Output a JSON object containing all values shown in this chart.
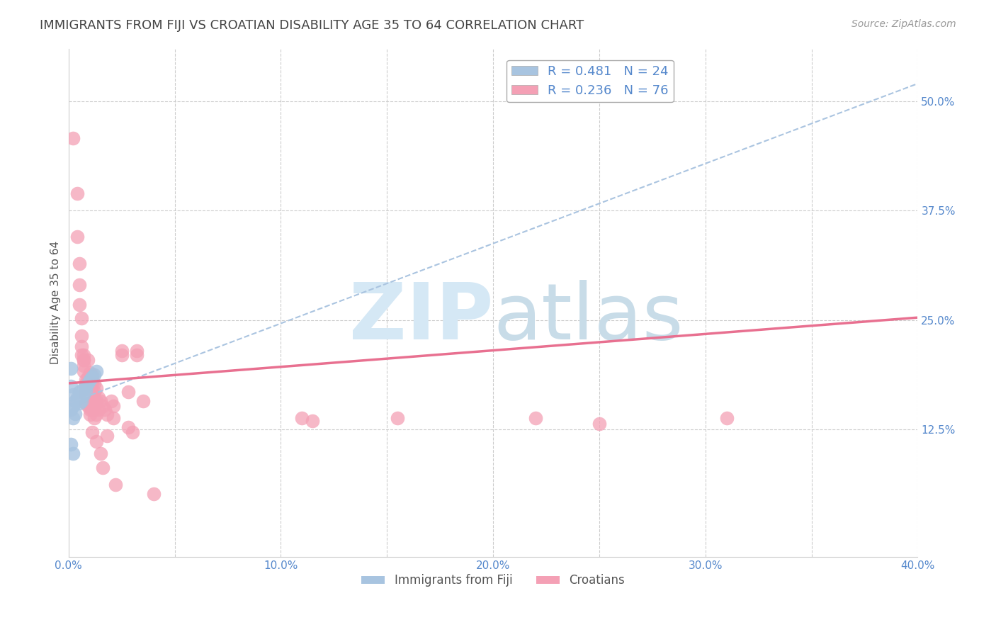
{
  "title": "IMMIGRANTS FROM FIJI VS CROATIAN DISABILITY AGE 35 TO 64 CORRELATION CHART",
  "source": "Source: ZipAtlas.com",
  "ylabel": "Disability Age 35 to 64",
  "xlim": [
    0.0,
    0.4
  ],
  "ylim": [
    -0.02,
    0.56
  ],
  "xticks": [
    0.0,
    0.05,
    0.1,
    0.15,
    0.2,
    0.25,
    0.3,
    0.35,
    0.4
  ],
  "xticklabels": [
    "0.0%",
    "",
    "10.0%",
    "",
    "20.0%",
    "",
    "30.0%",
    "",
    "40.0%"
  ],
  "yticks": [
    0.0,
    0.125,
    0.25,
    0.375,
    0.5
  ],
  "yticklabels_right": [
    "",
    "12.5%",
    "25.0%",
    "37.5%",
    "50.0%"
  ],
  "fiji_R": 0.481,
  "fiji_N": 24,
  "croatian_R": 0.236,
  "croatian_N": 76,
  "fiji_color": "#a8c4e0",
  "croatian_color": "#f4a0b5",
  "fiji_trendline_color": "#aac4e0",
  "fiji_trendline_style": "--",
  "croatian_trendline_color": "#e87090",
  "croatian_trendline_style": "-",
  "fiji_trendline": [
    [
      0.0,
      0.155
    ],
    [
      0.4,
      0.52
    ]
  ],
  "croatian_trendline": [
    [
      0.0,
      0.178
    ],
    [
      0.4,
      0.253
    ]
  ],
  "fiji_scatter": [
    [
      0.001,
      0.175
    ],
    [
      0.002,
      0.165
    ],
    [
      0.003,
      0.158
    ],
    [
      0.004,
      0.162
    ],
    [
      0.005,
      0.155
    ],
    [
      0.005,
      0.168
    ],
    [
      0.006,
      0.163
    ],
    [
      0.006,
      0.158
    ],
    [
      0.007,
      0.165
    ],
    [
      0.007,
      0.172
    ],
    [
      0.008,
      0.17
    ],
    [
      0.008,
      0.175
    ],
    [
      0.009,
      0.178
    ],
    [
      0.01,
      0.182
    ],
    [
      0.011,
      0.185
    ],
    [
      0.012,
      0.188
    ],
    [
      0.013,
      0.192
    ],
    [
      0.001,
      0.148
    ],
    [
      0.002,
      0.152
    ],
    [
      0.003,
      0.143
    ],
    [
      0.001,
      0.195
    ],
    [
      0.002,
      0.138
    ],
    [
      0.001,
      0.108
    ],
    [
      0.002,
      0.098
    ]
  ],
  "croatian_scatter": [
    [
      0.002,
      0.458
    ],
    [
      0.004,
      0.395
    ],
    [
      0.004,
      0.345
    ],
    [
      0.005,
      0.315
    ],
    [
      0.005,
      0.29
    ],
    [
      0.005,
      0.268
    ],
    [
      0.006,
      0.252
    ],
    [
      0.006,
      0.232
    ],
    [
      0.006,
      0.22
    ],
    [
      0.006,
      0.21
    ],
    [
      0.007,
      0.205
    ],
    [
      0.007,
      0.198
    ],
    [
      0.007,
      0.192
    ],
    [
      0.007,
      0.21
    ],
    [
      0.007,
      0.205
    ],
    [
      0.008,
      0.182
    ],
    [
      0.008,
      0.178
    ],
    [
      0.008,
      0.168
    ],
    [
      0.008,
      0.162
    ],
    [
      0.008,
      0.155
    ],
    [
      0.009,
      0.205
    ],
    [
      0.009,
      0.185
    ],
    [
      0.009,
      0.178
    ],
    [
      0.009,
      0.168
    ],
    [
      0.009,
      0.158
    ],
    [
      0.009,
      0.152
    ],
    [
      0.01,
      0.19
    ],
    [
      0.01,
      0.178
    ],
    [
      0.01,
      0.172
    ],
    [
      0.01,
      0.168
    ],
    [
      0.01,
      0.162
    ],
    [
      0.01,
      0.148
    ],
    [
      0.01,
      0.142
    ],
    [
      0.011,
      0.188
    ],
    [
      0.011,
      0.178
    ],
    [
      0.011,
      0.168
    ],
    [
      0.011,
      0.158
    ],
    [
      0.011,
      0.148
    ],
    [
      0.011,
      0.122
    ],
    [
      0.012,
      0.178
    ],
    [
      0.012,
      0.168
    ],
    [
      0.012,
      0.158
    ],
    [
      0.012,
      0.148
    ],
    [
      0.012,
      0.138
    ],
    [
      0.013,
      0.172
    ],
    [
      0.013,
      0.158
    ],
    [
      0.013,
      0.142
    ],
    [
      0.013,
      0.112
    ],
    [
      0.014,
      0.162
    ],
    [
      0.014,
      0.148
    ],
    [
      0.015,
      0.158
    ],
    [
      0.015,
      0.098
    ],
    [
      0.016,
      0.152
    ],
    [
      0.016,
      0.082
    ],
    [
      0.017,
      0.148
    ],
    [
      0.018,
      0.142
    ],
    [
      0.018,
      0.118
    ],
    [
      0.02,
      0.158
    ],
    [
      0.021,
      0.152
    ],
    [
      0.021,
      0.138
    ],
    [
      0.022,
      0.062
    ],
    [
      0.025,
      0.215
    ],
    [
      0.025,
      0.21
    ],
    [
      0.028,
      0.168
    ],
    [
      0.028,
      0.128
    ],
    [
      0.03,
      0.122
    ],
    [
      0.032,
      0.215
    ],
    [
      0.032,
      0.21
    ],
    [
      0.035,
      0.158
    ],
    [
      0.04,
      0.052
    ],
    [
      0.11,
      0.138
    ],
    [
      0.115,
      0.135
    ],
    [
      0.155,
      0.138
    ],
    [
      0.22,
      0.138
    ],
    [
      0.25,
      0.132
    ],
    [
      0.31,
      0.138
    ]
  ],
  "watermark_zip": "ZIP",
  "watermark_atlas": "atlas",
  "watermark_color": "#d5e8f5",
  "background_color": "#ffffff",
  "grid_color": "#cccccc",
  "tick_color": "#5588cc",
  "title_color": "#444444",
  "title_fontsize": 13,
  "axis_label_fontsize": 11,
  "tick_fontsize": 11,
  "legend_fontsize": 13
}
